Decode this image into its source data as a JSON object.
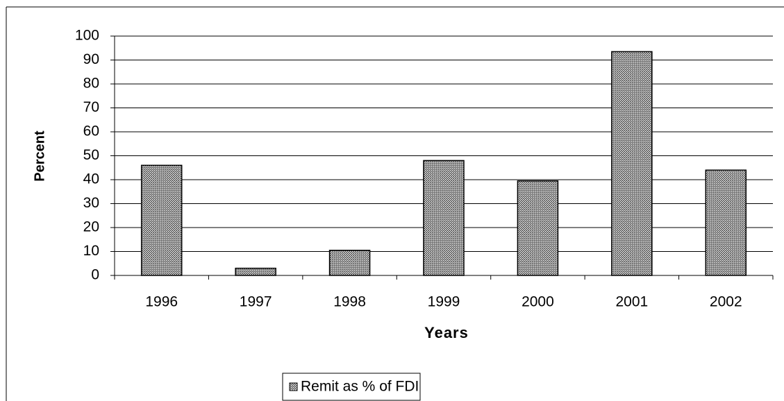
{
  "chart_data": {
    "type": "bar",
    "categories": [
      "1996",
      "1997",
      "1998",
      "1999",
      "2000",
      "2001",
      "2002"
    ],
    "series": [
      {
        "name": "Remit as % of FDI",
        "color": "#7a7a7a",
        "values": [
          46,
          3,
          10.5,
          48,
          39.5,
          93.5,
          44
        ]
      }
    ],
    "xlabel": "Years",
    "ylabel": "Percent",
    "ylim": [
      0,
      100
    ],
    "yticks": [
      0,
      10,
      20,
      30,
      40,
      50,
      60,
      70,
      80,
      90,
      100
    ],
    "grid": true,
    "legend": "bottom"
  }
}
